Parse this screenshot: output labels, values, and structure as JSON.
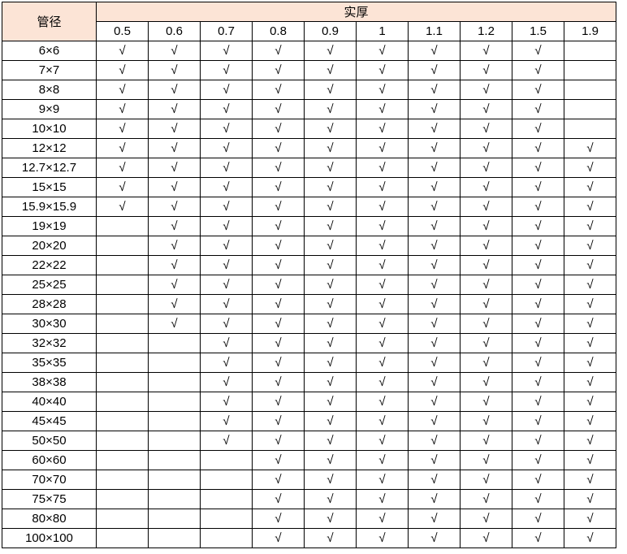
{
  "header": {
    "size_label": "管径",
    "thickness_label": "实厚",
    "thicknesses": [
      "0.5",
      "0.6",
      "0.7",
      "0.8",
      "0.9",
      "1",
      "1.1",
      "1.2",
      "1.5",
      "1.9"
    ]
  },
  "colors": {
    "header_bg": "#fce4d6"
  },
  "rows": [
    {
      "size": "6×6",
      "cells": [
        "√",
        "√",
        "√",
        "√",
        "√",
        "√",
        "√",
        "√",
        "√",
        ""
      ]
    },
    {
      "size": "7×7",
      "cells": [
        "√",
        "√",
        "√",
        "√",
        "√",
        "√",
        "√",
        "√",
        "√",
        ""
      ]
    },
    {
      "size": "8×8",
      "cells": [
        "√",
        "√",
        "√",
        "√",
        "√",
        "√",
        "√",
        "√",
        "√",
        ""
      ]
    },
    {
      "size": "9×9",
      "cells": [
        "√",
        "√",
        "√",
        "√",
        "√",
        "√",
        "√",
        "√",
        "√",
        ""
      ]
    },
    {
      "size": "10×10",
      "cells": [
        "√",
        "√",
        "√",
        "√",
        "√",
        "√",
        "√",
        "√",
        "√",
        ""
      ]
    },
    {
      "size": "12×12",
      "cells": [
        "√",
        "√",
        "√",
        "√",
        "√",
        "√",
        "√",
        "√",
        "√",
        "√"
      ]
    },
    {
      "size": "12.7×12.7",
      "cells": [
        "√",
        "√",
        "√",
        "√",
        "√",
        "√",
        "√",
        "√",
        "√",
        "√"
      ]
    },
    {
      "size": "15×15",
      "cells": [
        "√",
        "√",
        "√",
        "√",
        "√",
        "√",
        "√",
        "√",
        "√",
        "√"
      ]
    },
    {
      "size": "15.9×15.9",
      "cells": [
        "√",
        "√",
        "√",
        "√",
        "√",
        "√",
        "√",
        "√",
        "√",
        "√"
      ]
    },
    {
      "size": "19×19",
      "cells": [
        "",
        "√",
        "√",
        "√",
        "√",
        "√",
        "√",
        "√",
        "√",
        "√"
      ]
    },
    {
      "size": "20×20",
      "cells": [
        "",
        "√",
        "√",
        "√",
        "√",
        "√",
        "√",
        "√",
        "√",
        "√"
      ]
    },
    {
      "size": "22×22",
      "cells": [
        "",
        "√",
        "√",
        "√",
        "√",
        "√",
        "√",
        "√",
        "√",
        "√"
      ]
    },
    {
      "size": "25×25",
      "cells": [
        "",
        "√",
        "√",
        "√",
        "√",
        "√",
        "√",
        "√",
        "√",
        "√"
      ]
    },
    {
      "size": "28×28",
      "cells": [
        "",
        "√",
        "√",
        "√",
        "√",
        "√",
        "√",
        "√",
        "√",
        "√"
      ]
    },
    {
      "size": "30×30",
      "cells": [
        "",
        "√",
        "√",
        "√",
        "√",
        "√",
        "√",
        "√",
        "√",
        "√"
      ]
    },
    {
      "size": "32×32",
      "cells": [
        "",
        "",
        "√",
        "√",
        "√",
        "√",
        "√",
        "√",
        "√",
        "√"
      ]
    },
    {
      "size": "35×35",
      "cells": [
        "",
        "",
        "√",
        "√",
        "√",
        "√",
        "√",
        "√",
        "√",
        "√"
      ]
    },
    {
      "size": "38×38",
      "cells": [
        "",
        "",
        "√",
        "√",
        "√",
        "√",
        "√",
        "√",
        "√",
        "√"
      ]
    },
    {
      "size": "40×40",
      "cells": [
        "",
        "",
        "√",
        "√",
        "√",
        "√",
        "√",
        "√",
        "√",
        "√"
      ]
    },
    {
      "size": "45×45",
      "cells": [
        "",
        "",
        "√",
        "√",
        "√",
        "√",
        "√",
        "√",
        "√",
        "√"
      ]
    },
    {
      "size": "50×50",
      "cells": [
        "",
        "",
        "√",
        "√",
        "√",
        "√",
        "√",
        "√",
        "√",
        "√"
      ]
    },
    {
      "size": "60×60",
      "cells": [
        "",
        "",
        "",
        "√",
        "√",
        "√",
        "√",
        "√",
        "√",
        "√"
      ]
    },
    {
      "size": "70×70",
      "cells": [
        "",
        "",
        "",
        "√",
        "√",
        "√",
        "√",
        "√",
        "√",
        "√"
      ]
    },
    {
      "size": "75×75",
      "cells": [
        "",
        "",
        "",
        "√",
        "√",
        "√",
        "√",
        "√",
        "√",
        "√"
      ]
    },
    {
      "size": "80×80",
      "cells": [
        "",
        "",
        "",
        "√",
        "√",
        "√",
        "√",
        "√",
        "√",
        "√"
      ]
    },
    {
      "size": "100×100",
      "cells": [
        "",
        "",
        "",
        "√",
        "√",
        "√",
        "√",
        "√",
        "√",
        "√"
      ]
    }
  ]
}
